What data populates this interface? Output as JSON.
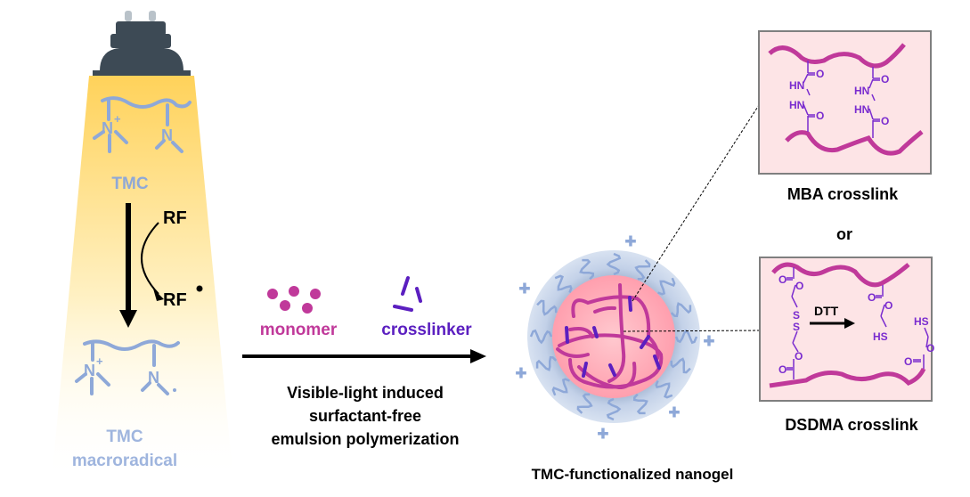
{
  "left": {
    "tmc_label": "TMC",
    "rf_label": "RF",
    "rf_radical_label": "RF",
    "macroradical_line1": "TMC",
    "macroradical_line2": "macroradical",
    "atoms": {
      "n_plus": "N",
      "plus": "+",
      "n": "N"
    }
  },
  "middle": {
    "monomer_label": "monomer",
    "crosslinker_label": "crosslinker",
    "process_line1": "Visible-light induced",
    "process_line2": "surfactant-free",
    "process_line3": "emulsion polymerization"
  },
  "nanogel": {
    "label": "TMC-functionalized nanogel",
    "charge": "+"
  },
  "mba": {
    "label": "MBA crosslink",
    "atoms": {
      "hn": "HN",
      "o": "O"
    }
  },
  "or_label": "or",
  "dsdma": {
    "label": "DSDMA crosslink",
    "reagent": "DTT",
    "atoms": {
      "o": "O",
      "s": "S",
      "hs": "HS"
    }
  },
  "colors": {
    "tmc_blue": "#8ea8d8",
    "polymer_magenta": "#c0399a",
    "crosslinker_purple": "#5b1fc0",
    "chem_purple": "#7a2ccf",
    "box_fill": "#fde4e6",
    "lamp": "#3d4a55",
    "light": "#ffd970",
    "shell": "#c9d6ea",
    "core": "#ffb8c0"
  }
}
